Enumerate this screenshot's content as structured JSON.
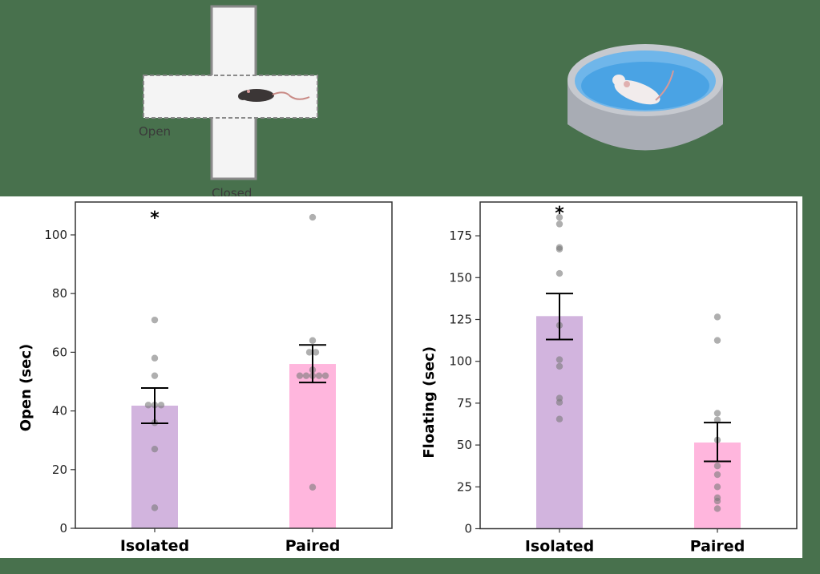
{
  "illustrations": {
    "maze": {
      "open_label": "Open",
      "closed_label": "Closed"
    },
    "pool": {
      "label": ""
    }
  },
  "colors": {
    "background": "#48714d",
    "isolated_bar": "#d2b4de",
    "paired_bar": "#ffb6dd",
    "points": "#8a8a8a",
    "error_bar": "#000000"
  },
  "chart_data": [
    {
      "type": "bar",
      "title": "",
      "xlabel": "",
      "ylabel": "Open (sec)",
      "categories": [
        "Isolated",
        "Paired"
      ],
      "values": [
        41.8,
        56.0
      ],
      "error": [
        [
          35.8,
          47.8
        ],
        [
          49.7,
          62.5
        ]
      ],
      "ylim": [
        0,
        110
      ],
      "yticks": [
        0,
        20,
        40,
        60,
        80,
        100
      ],
      "points": [
        [
          71,
          58,
          52,
          42,
          42,
          42,
          36,
          27,
          7
        ],
        [
          106,
          64,
          60,
          60,
          54,
          52,
          52,
          52,
          52,
          52,
          14
        ]
      ],
      "annotations": [
        {
          "text": "*",
          "category": "Isolated",
          "y": 107
        }
      ],
      "grid": false
    },
    {
      "type": "bar",
      "title": "",
      "xlabel": "",
      "ylabel": "Floating (sec)",
      "categories": [
        "Isolated",
        "Paired"
      ],
      "values": [
        127,
        51.5
      ],
      "error": [
        [
          113,
          140.5
        ],
        [
          40.2,
          63.4
        ]
      ],
      "ylim": [
        0,
        195
      ],
      "yticks": [
        0,
        25,
        50,
        75,
        100,
        125,
        150,
        175
      ],
      "points": [
        [
          186,
          182,
          168,
          167,
          152.5,
          121.5,
          101,
          97,
          78,
          75.5,
          65.5
        ],
        [
          126.5,
          112.5,
          69,
          65,
          53,
          37.5,
          32.3,
          25,
          18.5,
          16.5,
          12
        ]
      ],
      "annotations": [
        {
          "text": "*",
          "category": "Isolated",
          "y": 190
        }
      ],
      "grid": false
    }
  ]
}
